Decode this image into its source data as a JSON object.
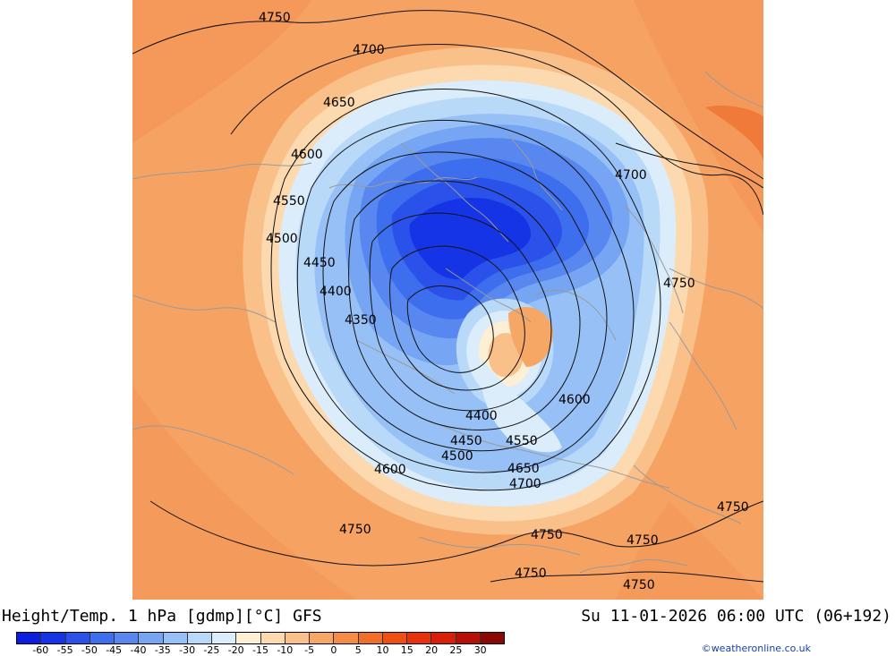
{
  "header": {
    "product_title": "Height/Temp. 1 hPa [gdmp][°C] GFS",
    "valid_time": "Su 11-01-2026 06:00 UTC (06+192)"
  },
  "colorbar": {
    "swatch_colors": [
      "#0b1ee0",
      "#1434e6",
      "#2a52ea",
      "#3d6eee",
      "#5888ef",
      "#76a6f3",
      "#97c1f6",
      "#b9d9f9",
      "#dbecfb",
      "#fdefd3",
      "#fcd9ae",
      "#f9c089",
      "#f6a766",
      "#f48c44",
      "#f06e27",
      "#ee4f12",
      "#e8320c",
      "#d81d08",
      "#b50f06",
      "#8b0804"
    ],
    "tick_labels": [
      "-60",
      "-55",
      "-50",
      "-45",
      "-40",
      "-35",
      "-30",
      "-25",
      "-20",
      "-15",
      "-10",
      "-5",
      "0",
      "5",
      "10",
      "15",
      "20",
      "25",
      "30"
    ]
  },
  "contours": {
    "labels": [
      "4750",
      "4700",
      "4650",
      "4600",
      "4550",
      "4500",
      "4450",
      "4400",
      "4350",
      "4700",
      "4750",
      "4600",
      "4400",
      "4450",
      "4550",
      "4500",
      "4650",
      "4700",
      "4600",
      "4750",
      "4750",
      "4750",
      "4750",
      "4750",
      "4750"
    ]
  },
  "colors": {
    "background_warm": "#f7a968",
    "outer_warm": "#f49a5a",
    "cold_core": "#1540e0",
    "credit_blue": "#1a3ea8"
  },
  "credit": {
    "text": "©weatheronline.co.uk"
  }
}
